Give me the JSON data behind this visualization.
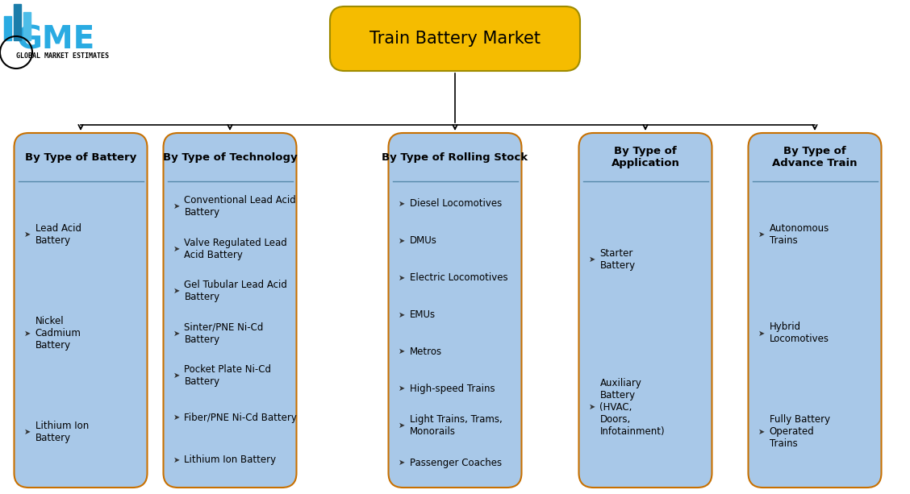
{
  "title": "Train Battery Market",
  "title_box_color": "#F5BC00",
  "title_box_border": "#9E8B00",
  "title_font_size": 16,
  "bg_color": "#FFFFFF",
  "column_bg_color": "#A8C8E8",
  "column_border_color": "#C87000",
  "columns": [
    {
      "header": "By Type of Battery",
      "items": [
        "Lead Acid\nBattery",
        "Nickel\nCadmium\nBattery",
        "Lithium Ion\nBattery"
      ]
    },
    {
      "header": "By Type of Technology",
      "items": [
        "Conventional Lead Acid\nBattery",
        "Valve Regulated Lead\nAcid Battery",
        "Gel Tubular Lead Acid\nBattery",
        "Sinter/PNE Ni-Cd\nBattery",
        "Pocket Plate Ni-Cd\nBattery",
        "Fiber/PNE Ni-Cd Battery",
        "Lithium Ion Battery"
      ]
    },
    {
      "header": "By Type of Rolling Stock",
      "items": [
        "Diesel Locomotives",
        "DMUs",
        "Electric Locomotives",
        "EMUs",
        "Metros",
        "High-speed Trains",
        "Light Trains, Trams,\nMonorails",
        "Passenger Coaches"
      ]
    },
    {
      "header": "By Type of\nApplication",
      "items": [
        "Starter\nBattery",
        "Auxiliary\nBattery\n(HVAC,\nDoors,\nInfotainment)"
      ]
    },
    {
      "header": "By Type of\nAdvance Train",
      "items": [
        "Autonomous\nTrains",
        "Hybrid\nLocomotives",
        "Fully Battery\nOperated\nTrains"
      ]
    }
  ]
}
